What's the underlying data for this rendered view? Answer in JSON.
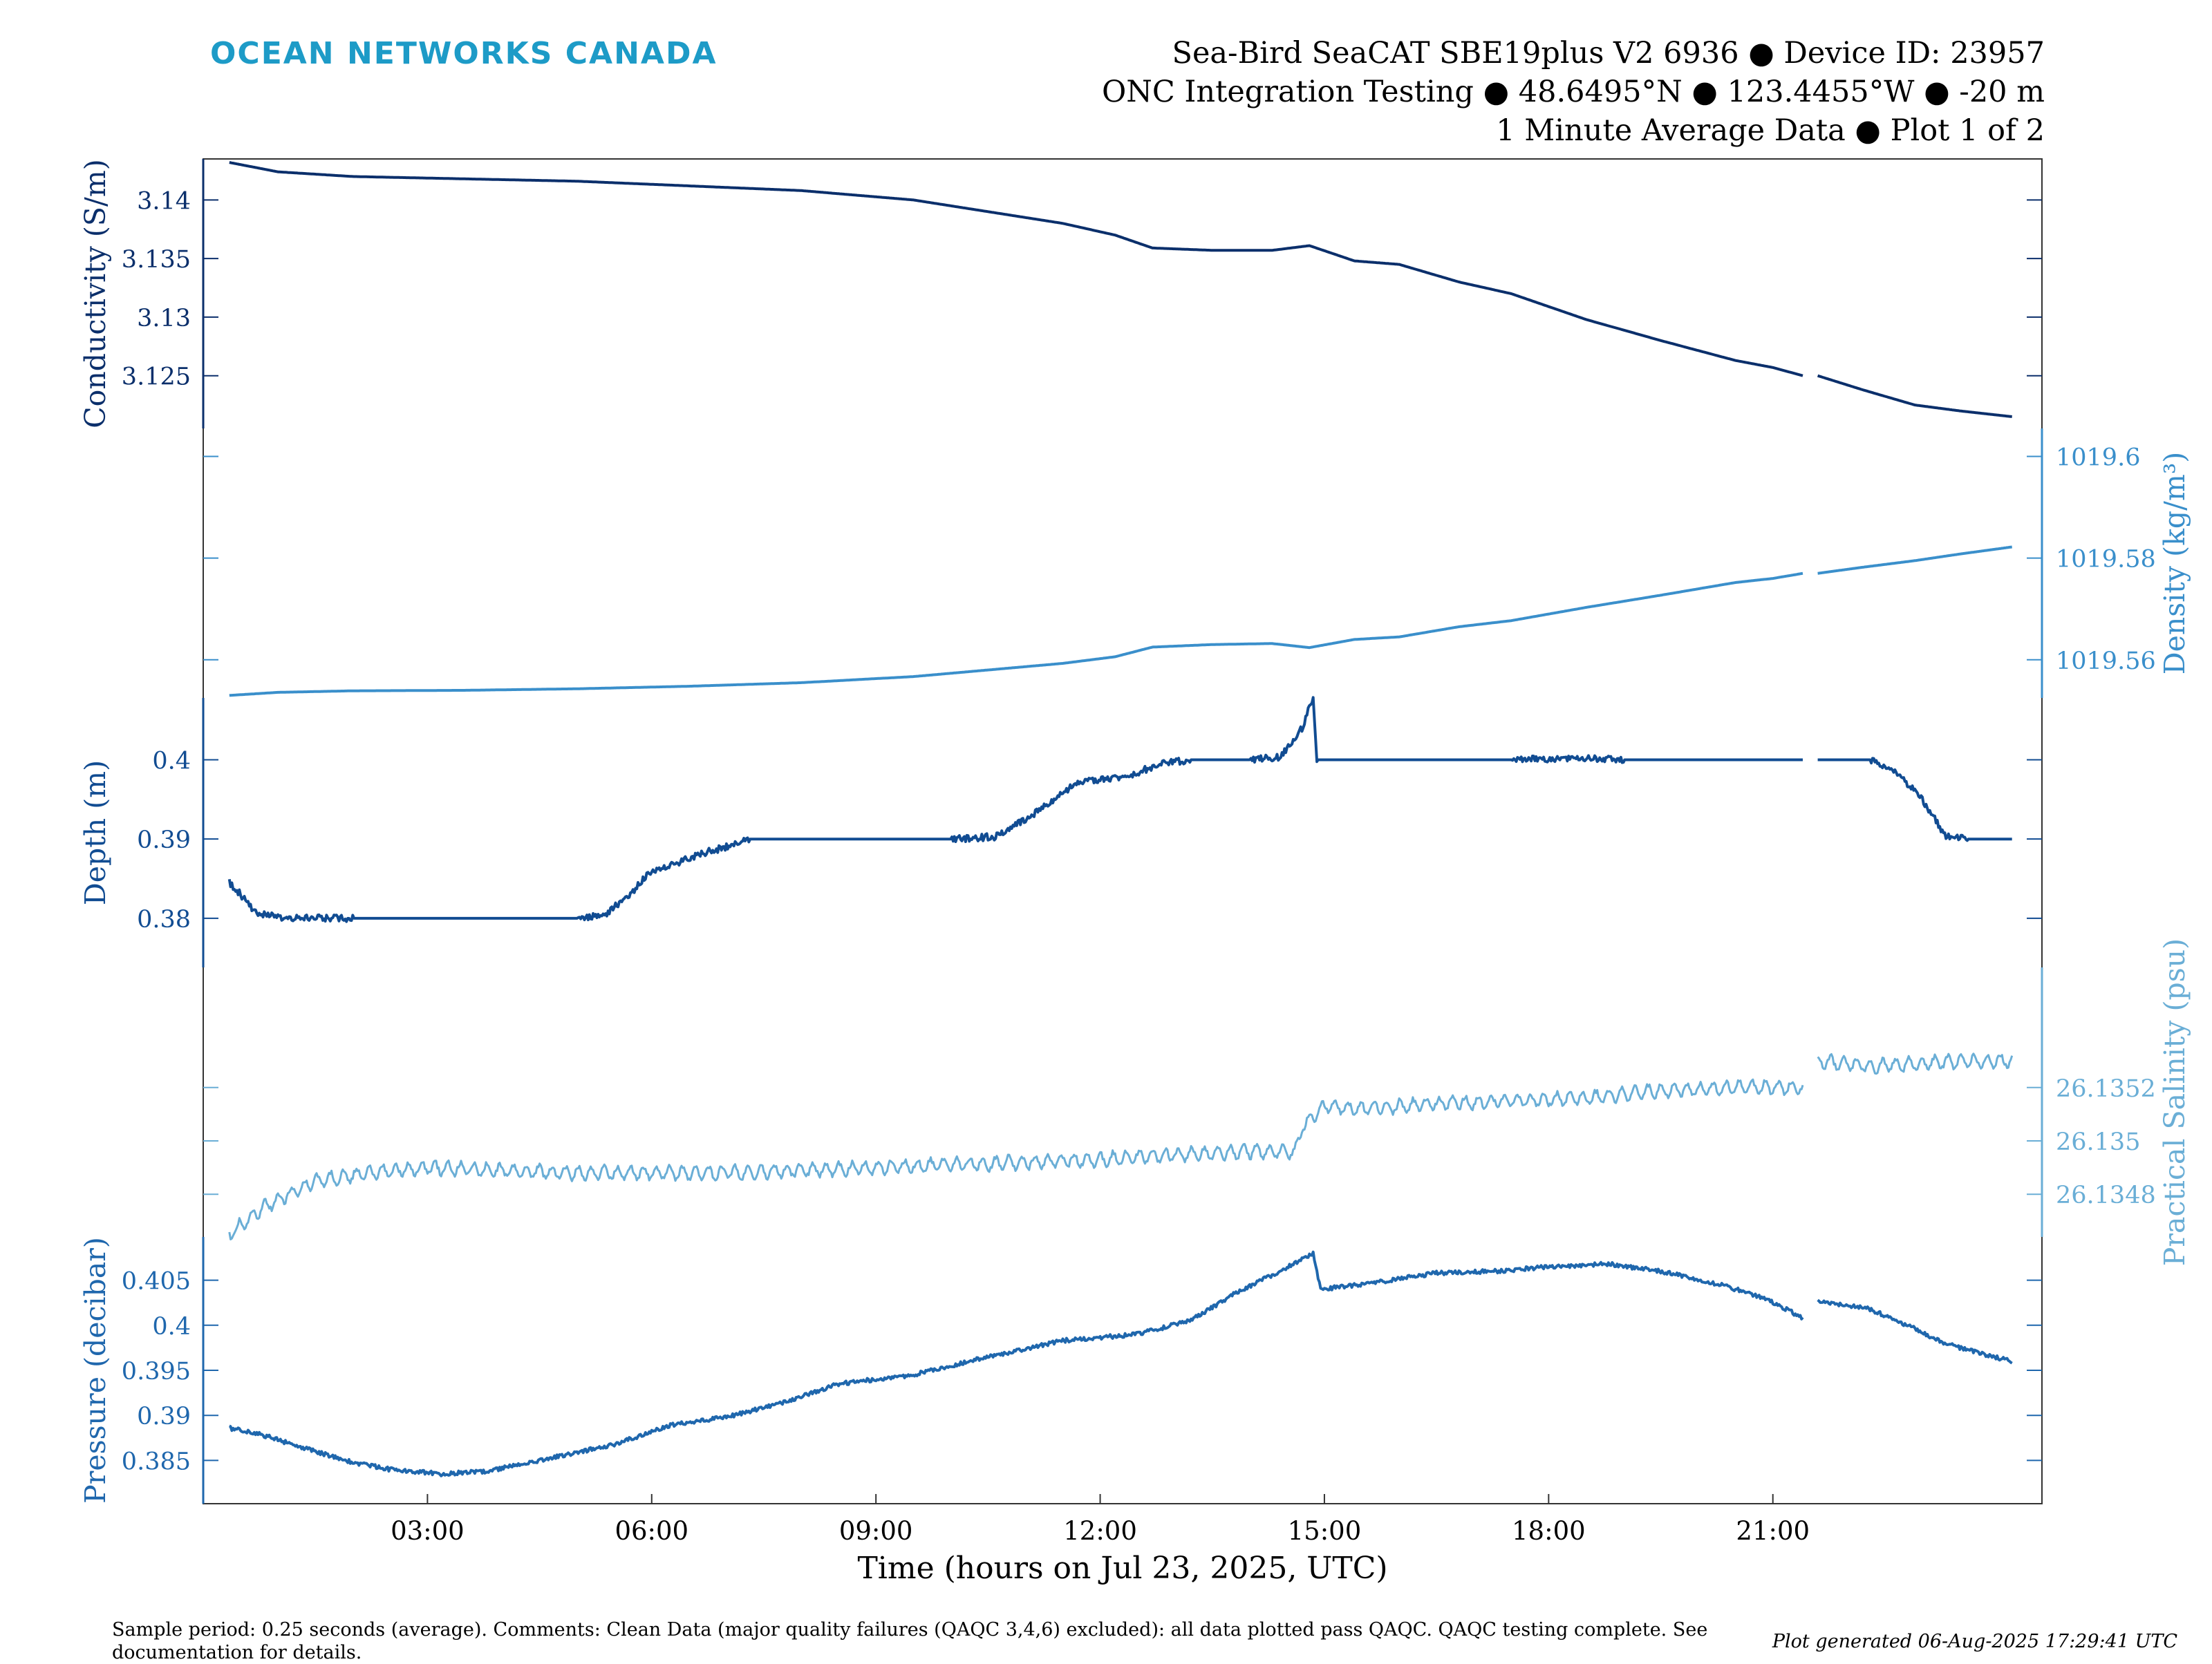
{
  "header": {
    "org": "OCEAN NETWORKS CANADA",
    "line1": "Sea-Bird SeaCAT SBE19plus V2 6936 ● Device ID: 23957",
    "line2": "ONC Integration Testing ● 48.6495°N ● 123.4455°W ● -20 m",
    "line3": "1 Minute Average Data ● Plot 1 of 2"
  },
  "footer": {
    "note": "Sample period: 0.25 seconds (average). Comments: Clean Data (major quality failures (QAQC 3,4,6) excluded): all data plotted pass QAQC. QAQC testing complete. See documentation for details.",
    "generated": "Plot generated 06-Aug-2025 17:29:41 UTC"
  },
  "colors": {
    "conductivity": "#0b2f6b",
    "density": "#3a8fcb",
    "depth": "#114c92",
    "salinity": "#6aaed6",
    "pressure": "#1f67ad",
    "axis": "#333333"
  },
  "chart_data": {
    "type": "line",
    "xlabel": "Time (hours on Jul 23, 2025, UTC)",
    "x_unit": "hours (UTC)",
    "xlim": [
      0,
      24.6
    ],
    "x_ticks": [
      {
        "value": 3,
        "label": "03:00"
      },
      {
        "value": 6,
        "label": "06:00"
      },
      {
        "value": 9,
        "label": "09:00"
      },
      {
        "value": 12,
        "label": "12:00"
      },
      {
        "value": 15,
        "label": "15:00"
      },
      {
        "value": 18,
        "label": "18:00"
      },
      {
        "value": 21,
        "label": "21:00"
      }
    ],
    "grid": false,
    "legend": "none",
    "panels": [
      {
        "key": "conductivity",
        "ylabel": "Conductivity (S/m)",
        "side": "left",
        "ylim": [
          3.1205,
          3.1435
        ],
        "ticks": [
          {
            "value": 3.14,
            "label": "3.14"
          },
          {
            "value": 3.135,
            "label": "3.135"
          },
          {
            "value": 3.13,
            "label": "3.13"
          },
          {
            "value": 3.125,
            "label": "3.125"
          }
        ],
        "series": [
          {
            "segments": [
              [
                [
                  0.35,
                  3.1432
                ],
                [
                  1,
                  3.1424
                ],
                [
                  2,
                  3.142
                ],
                [
                  3.5,
                  3.1418
                ],
                [
                  5,
                  3.1416
                ],
                [
                  6.5,
                  3.1412
                ],
                [
                  8,
                  3.1408
                ],
                [
                  9.5,
                  3.14
                ],
                [
                  10.5,
                  3.139
                ],
                [
                  11.5,
                  3.138
                ],
                [
                  12.2,
                  3.137
                ],
                [
                  12.7,
                  3.1359
                ],
                [
                  13.5,
                  3.1357
                ],
                [
                  14.3,
                  3.1357
                ],
                [
                  14.8,
                  3.1361
                ],
                [
                  15.4,
                  3.1348
                ],
                [
                  16,
                  3.1345
                ],
                [
                  16.8,
                  3.133
                ],
                [
                  17.5,
                  3.132
                ],
                [
                  18.5,
                  3.1298
                ],
                [
                  19.5,
                  3.128
                ],
                [
                  20.5,
                  3.1263
                ],
                [
                  21.0,
                  3.1257
                ],
                [
                  21.4,
                  3.125
                ]
              ],
              [
                [
                  21.6,
                  3.125
                ],
                [
                  22.2,
                  3.1238
                ],
                [
                  22.9,
                  3.1225
                ],
                [
                  23.5,
                  3.122
                ],
                [
                  24.2,
                  3.1215
                ]
              ]
            ]
          }
        ]
      },
      {
        "key": "density",
        "ylabel": "Density (kg/m³)",
        "side": "right",
        "ylim": [
          1019.5525,
          1019.6055
        ],
        "ticks": [
          {
            "value": 1019.6,
            "label": "1019.6"
          },
          {
            "value": 1019.58,
            "label": "1019.58"
          },
          {
            "value": 1019.56,
            "label": "1019.56"
          }
        ],
        "series": [
          {
            "segments": [
              [
                [
                  0.35,
                  1019.553
                ],
                [
                  1,
                  1019.5536
                ],
                [
                  2,
                  1019.5539
                ],
                [
                  3.5,
                  1019.554
                ],
                [
                  5,
                  1019.5543
                ],
                [
                  6.5,
                  1019.5548
                ],
                [
                  8,
                  1019.5555
                ],
                [
                  9.5,
                  1019.5567
                ],
                [
                  10.5,
                  1019.558
                ],
                [
                  11.5,
                  1019.5593
                ],
                [
                  12.2,
                  1019.5606
                ],
                [
                  12.7,
                  1019.5625
                ],
                [
                  13.5,
                  1019.563
                ],
                [
                  14.3,
                  1019.5632
                ],
                [
                  14.8,
                  1019.5624
                ],
                [
                  15.4,
                  1019.564
                ],
                [
                  16,
                  1019.5645
                ],
                [
                  16.8,
                  1019.5665
                ],
                [
                  17.5,
                  1019.5677
                ],
                [
                  18.5,
                  1019.5703
                ],
                [
                  19.5,
                  1019.5727
                ],
                [
                  20.5,
                  1019.5752
                ],
                [
                  21.0,
                  1019.576
                ],
                [
                  21.4,
                  1019.577
                ]
              ],
              [
                [
                  21.6,
                  1019.577
                ],
                [
                  22.2,
                  1019.5782
                ],
                [
                  22.9,
                  1019.5795
                ],
                [
                  23.5,
                  1019.5808
                ],
                [
                  24.2,
                  1019.5822
                ]
              ]
            ]
          }
        ]
      },
      {
        "key": "depth",
        "ylabel": "Depth (m)",
        "side": "left",
        "ylim": [
          0.3738,
          0.4078
        ],
        "ticks": [
          {
            "value": 0.4,
            "label": "0.4"
          },
          {
            "value": 0.39,
            "label": "0.39"
          },
          {
            "value": 0.38,
            "label": "0.38"
          }
        ],
        "series": [
          {
            "segments": [
              [
                [
                  0.35,
                  0.3845
                ],
                [
                  0.5,
                  0.383
                ],
                [
                  0.7,
                  0.3808
                ],
                [
                  1.0,
                  0.3801
                ],
                [
                  2,
                  0.38
                ],
                [
                  3.5,
                  0.38
                ],
                [
                  5.0,
                  0.38
                ],
                [
                  5.4,
                  0.3806
                ],
                [
                  5.7,
                  0.383
                ],
                [
                  6.0,
                  0.386
                ],
                [
                  6.3,
                  0.3868
                ],
                [
                  6.6,
                  0.388
                ],
                [
                  7.0,
                  0.389
                ],
                [
                  7.3,
                  0.39
                ],
                [
                  8.5,
                  0.39
                ],
                [
                  10.0,
                  0.39
                ],
                [
                  10.6,
                  0.3903
                ],
                [
                  11.0,
                  0.3925
                ],
                [
                  11.4,
                  0.395
                ],
                [
                  11.7,
                  0.3972
                ],
                [
                  12.0,
                  0.3975
                ],
                [
                  12.4,
                  0.398
                ],
                [
                  12.8,
                  0.3995
                ],
                [
                  13.2,
                  0.4
                ],
                [
                  14.0,
                  0.4
                ],
                [
                  14.4,
                  0.4003
                ],
                [
                  14.7,
                  0.404
                ],
                [
                  14.85,
                  0.408
                ],
                [
                  14.9,
                  0.4
                ],
                [
                  16.0,
                  0.4
                ],
                [
                  17.5,
                  0.4
                ],
                [
                  18.2,
                  0.4002
                ],
                [
                  19.0,
                  0.4
                ],
                [
                  21.4,
                  0.4
                ]
              ],
              [
                [
                  21.6,
                  0.4
                ],
                [
                  22.3,
                  0.4
                ],
                [
                  22.7,
                  0.398
                ],
                [
                  23.0,
                  0.395
                ],
                [
                  23.3,
                  0.3905
                ],
                [
                  23.6,
                  0.39
                ],
                [
                  24.2,
                  0.39
                ]
              ]
            ]
          }
        ]
      },
      {
        "key": "salinity",
        "ylabel": "Practical Salinity (psu)",
        "side": "right",
        "ylim": [
          26.13464,
          26.13565
        ],
        "ticks": [
          {
            "value": 26.1352,
            "label": "26.1352"
          },
          {
            "value": 26.135,
            "label": "26.135"
          },
          {
            "value": 26.1348,
            "label": "26.1348"
          }
        ],
        "series": [
          {
            "segments": [
              [
                [
                  0.35,
                  26.13465
                ],
                [
                  0.8,
                  26.13475
                ],
                [
                  1.5,
                  26.13485
                ],
                [
                  2.2,
                  26.13488
                ],
                [
                  3,
                  26.1349
                ],
                [
                  4,
                  26.13489
                ],
                [
                  5,
                  26.13488
                ],
                [
                  6,
                  26.13488
                ],
                [
                  7,
                  26.13488
                ],
                [
                  8,
                  26.13489
                ],
                [
                  9,
                  26.1349
                ],
                [
                  10,
                  26.13491
                ],
                [
                  11,
                  26.13492
                ],
                [
                  12,
                  26.13493
                ],
                [
                  13,
                  26.13495
                ],
                [
                  14,
                  26.13496
                ],
                [
                  14.6,
                  26.13496
                ],
                [
                  14.7,
                  26.13505
                ],
                [
                  15.0,
                  26.13513
                ],
                [
                  15.5,
                  26.13512
                ],
                [
                  16.5,
                  26.13514
                ],
                [
                  17.5,
                  26.13515
                ],
                [
                  18.5,
                  26.13516
                ],
                [
                  19.5,
                  26.13519
                ],
                [
                  20.5,
                  26.1352
                ],
                [
                  21.4,
                  26.1352
                ]
              ],
              [
                [
                  21.6,
                  26.1353
                ],
                [
                  22.3,
                  26.13528
                ],
                [
                  23,
                  26.13529
                ],
                [
                  23.7,
                  26.1353
                ],
                [
                  24.2,
                  26.1353
                ]
              ]
            ]
          }
        ]
      },
      {
        "key": "pressure",
        "ylabel": "Pressure (decibar)",
        "side": "left",
        "ylim": [
          0.3802,
          0.4098
        ],
        "ticks": [
          {
            "value": 0.405,
            "label": "0.405"
          },
          {
            "value": 0.4,
            "label": "0.4"
          },
          {
            "value": 0.395,
            "label": "0.395"
          },
          {
            "value": 0.39,
            "label": "0.39"
          },
          {
            "value": 0.385,
            "label": "0.385"
          }
        ],
        "series": [
          {
            "segments": [
              [
                [
                  0.35,
                  0.3886
                ],
                [
                  0.8,
                  0.3878
                ],
                [
                  1.5,
                  0.386
                ],
                [
                  2.0,
                  0.3848
                ],
                [
                  2.5,
                  0.384
                ],
                [
                  3.2,
                  0.3835
                ],
                [
                  3.8,
                  0.3838
                ],
                [
                  4.5,
                  0.385
                ],
                [
                  5.5,
                  0.3868
                ],
                [
                  6.3,
                  0.389
                ],
                [
                  7.0,
                  0.3898
                ],
                [
                  7.8,
                  0.3915
                ],
                [
                  8.5,
                  0.3935
                ],
                [
                  9.5,
                  0.3945
                ],
                [
                  10.5,
                  0.3965
                ],
                [
                  11.5,
                  0.3983
                ],
                [
                  12.5,
                  0.399
                ],
                [
                  13.2,
                  0.4005
                ],
                [
                  13.8,
                  0.4035
                ],
                [
                  14.4,
                  0.406
                ],
                [
                  14.85,
                  0.408
                ],
                [
                  14.95,
                  0.404
                ],
                [
                  15.5,
                  0.4045
                ],
                [
                  16.5,
                  0.4058
                ],
                [
                  17.3,
                  0.406
                ],
                [
                  18.0,
                  0.4065
                ],
                [
                  18.8,
                  0.4068
                ],
                [
                  19.5,
                  0.406
                ],
                [
                  20.3,
                  0.4045
                ],
                [
                  20.9,
                  0.403
                ],
                [
                  21.4,
                  0.4008
                ]
              ],
              [
                [
                  21.6,
                  0.4027
                ],
                [
                  22.3,
                  0.4018
                ],
                [
                  22.8,
                  0.4
                ],
                [
                  23.3,
                  0.398
                ],
                [
                  23.8,
                  0.3968
                ],
                [
                  24.2,
                  0.396
                ]
              ]
            ]
          }
        ]
      }
    ]
  }
}
